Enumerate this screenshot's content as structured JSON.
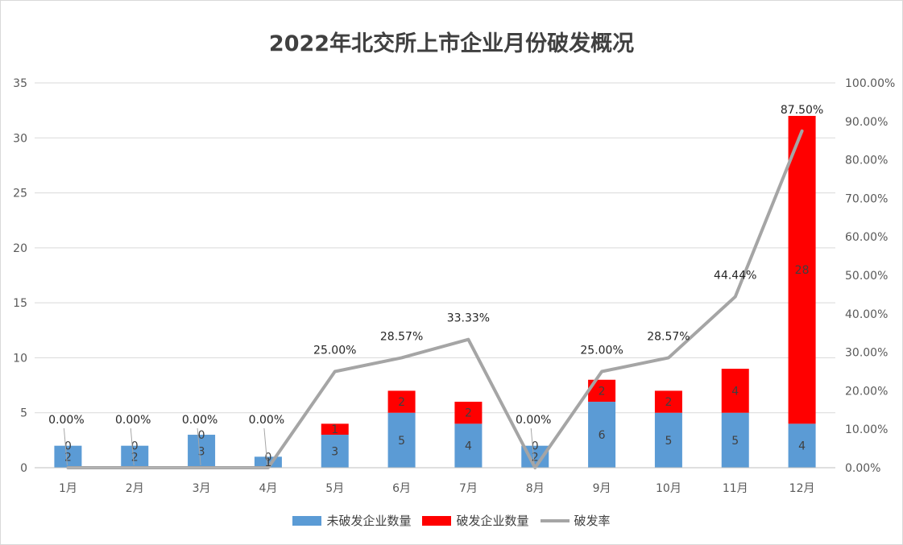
{
  "chart_data": {
    "type": "bar",
    "title": "2022年北交所上市企业月份破发概况",
    "categories": [
      "1月",
      "2月",
      "3月",
      "4月",
      "5月",
      "6月",
      "7月",
      "8月",
      "9月",
      "10月",
      "11月",
      "12月"
    ],
    "series": [
      {
        "name": "未破发企业数量",
        "kind": "stacked-bar",
        "axis": "left",
        "color": "#5b9bd5",
        "values": [
          2,
          2,
          3,
          1,
          3,
          5,
          4,
          2,
          6,
          5,
          5,
          4
        ]
      },
      {
        "name": "破发企业数量",
        "kind": "stacked-bar",
        "axis": "left",
        "color": "#ff0000",
        "values": [
          0,
          0,
          0,
          0,
          1,
          2,
          2,
          0,
          2,
          2,
          4,
          28
        ]
      },
      {
        "name": "破发率",
        "kind": "line",
        "axis": "right",
        "color": "#a5a5a5",
        "values": [
          0,
          0,
          0,
          0,
          25,
          28.57,
          33.33,
          0,
          25,
          28.57,
          44.44,
          87.5
        ],
        "labels": [
          "0.00%",
          "0.00%",
          "0.00%",
          "0.00%",
          "25.00%",
          "28.57%",
          "33.33%",
          "0.00%",
          "25.00%",
          "28.57%",
          "44.44%",
          "87.50%"
        ]
      }
    ],
    "y_left": {
      "min": 0,
      "max": 35,
      "ticks": [
        "0",
        "5",
        "10",
        "15",
        "20",
        "25",
        "30",
        "35"
      ]
    },
    "y_right": {
      "min": 0,
      "max": 100,
      "ticks": [
        "0.00%",
        "10.00%",
        "20.00%",
        "30.00%",
        "40.00%",
        "50.00%",
        "60.00%",
        "70.00%",
        "80.00%",
        "90.00%",
        "100.00%"
      ]
    },
    "grid": true,
    "legend_position": "bottom"
  }
}
